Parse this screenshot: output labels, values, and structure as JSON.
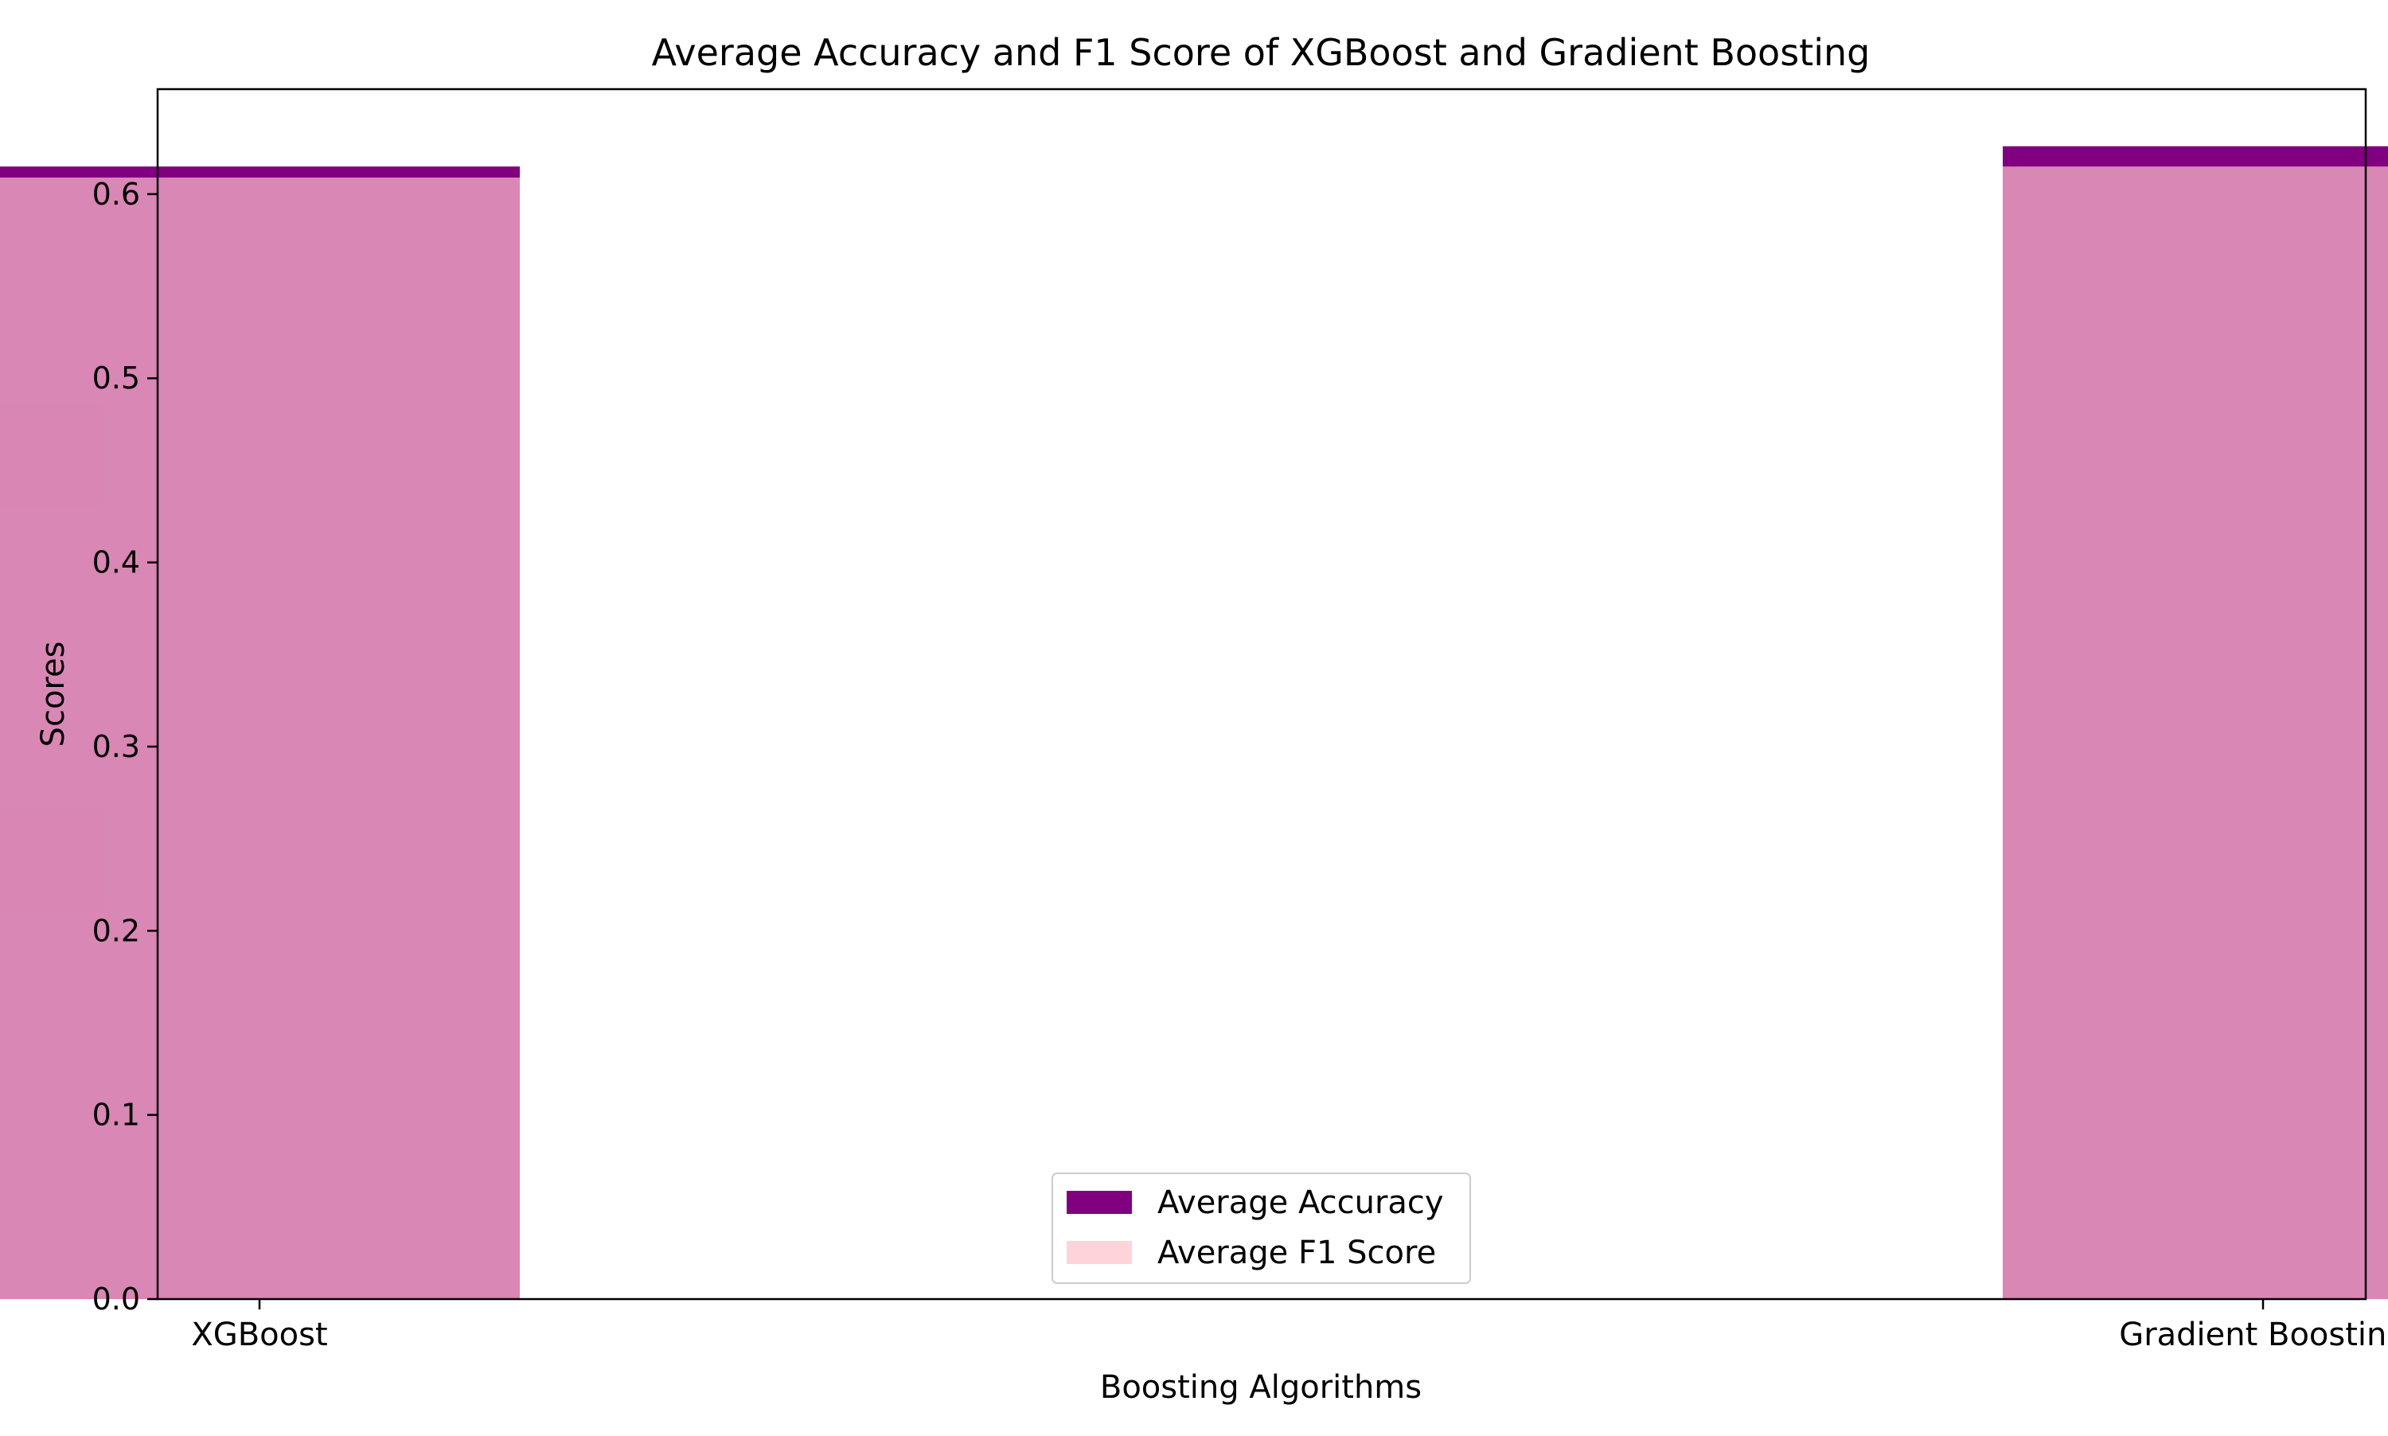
{
  "chart_data": {
    "type": "bar",
    "title": "Average Accuracy and F1 Score of XGBoost and Gradient Boosting",
    "xlabel": "Boosting Algorithms",
    "ylabel": "Scores",
    "categories": [
      "XGBoost",
      "Gradient Boosting"
    ],
    "series": [
      {
        "name": "Average Accuracy",
        "values": [
          0.615,
          0.626
        ],
        "color": "#800080"
      },
      {
        "name": "Average F1 Score",
        "values": [
          0.609,
          0.615
        ],
        "color": "#ffc0cb",
        "opacity": 0.7
      }
    ],
    "ylim": [
      0,
      0.657
    ],
    "yticks": [
      "0.0",
      "0.1",
      "0.2",
      "0.3",
      "0.4",
      "0.5",
      "0.6"
    ],
    "grid": false,
    "legend_position": "bottom-center"
  }
}
